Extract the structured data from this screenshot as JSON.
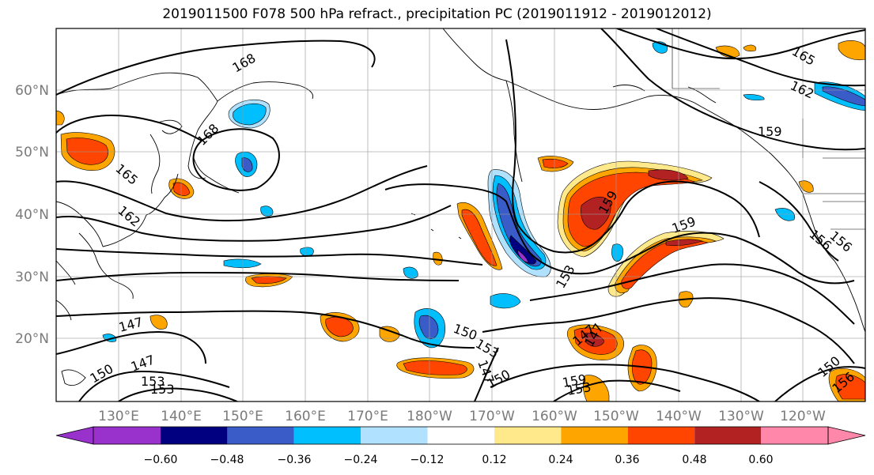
{
  "title": "2019011500 F078 500 hPa refract., precipitation PC (2019011912 - 2019012012)",
  "lat_labels": [
    "60°N",
    "50°N",
    "40°N",
    "30°N",
    "20°N"
  ],
  "lon_labels": [
    "130°E",
    "140°E",
    "150°E",
    "160°E",
    "170°E",
    "180°W",
    "170°W",
    "160°W",
    "150°W",
    "140°W",
    "130°W",
    "120°W"
  ],
  "contour_labels": [
    "168",
    "168",
    "165",
    "162",
    "165",
    "162",
    "159",
    "159",
    "159",
    "156",
    "153",
    "153",
    "150",
    "150",
    "150",
    "147",
    "147",
    "147",
    "159",
    "153",
    "153",
    "156",
    "150",
    "147",
    "153",
    "156",
    "147"
  ],
  "colorbar": {
    "ticks": [
      "−0.60",
      "−0.48",
      "−0.36",
      "−0.24",
      "−0.12",
      "0.12",
      "0.24",
      "0.36",
      "0.48",
      "0.60"
    ],
    "colors": [
      "#9932cc",
      "#000080",
      "#3a5cc8",
      "#00bfff",
      "#b0e2ff",
      "#ffffff",
      "#ffe98a",
      "#ffa500",
      "#ff4500",
      "#b22222",
      "#ff88aa"
    ]
  }
}
